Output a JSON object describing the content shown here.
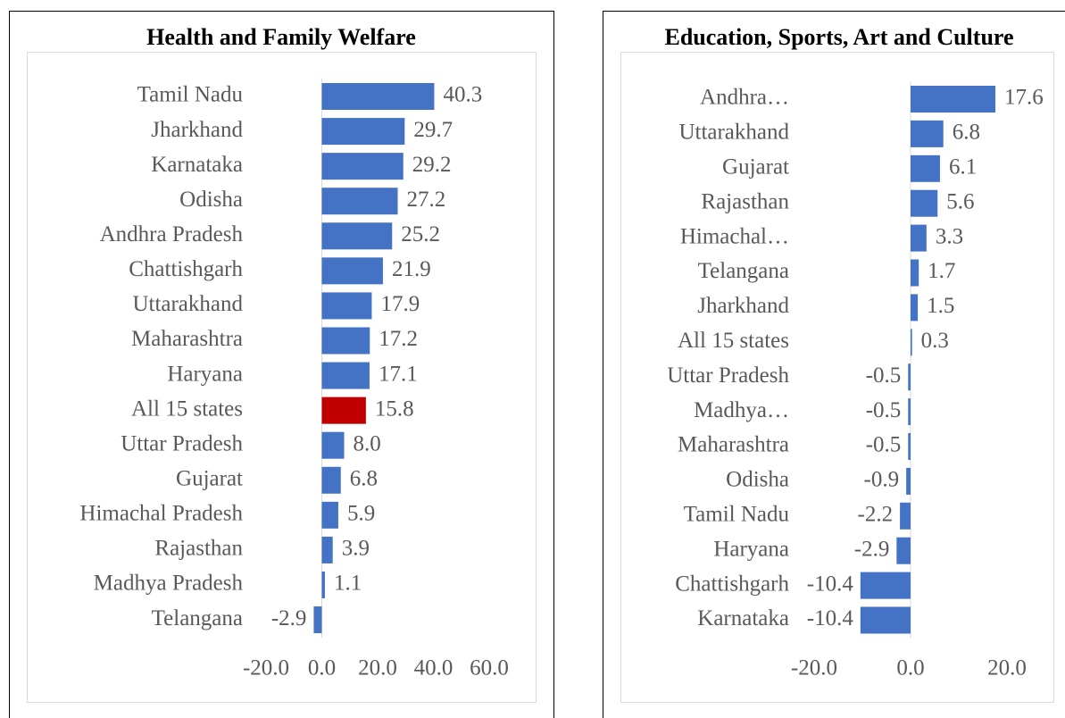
{
  "chart_data": [
    {
      "type": "bar",
      "orientation": "horizontal",
      "title": "Health and Family Welfare",
      "categories": [
        "Tamil Nadu",
        "Jharkhand",
        "Karnataka",
        "Odisha",
        "Andhra Pradesh",
        "Chattishgarh",
        "Uttarakhand",
        "Maharashtra",
        "Haryana",
        "All 15 states",
        "Uttar Pradesh",
        "Gujarat",
        "Himachal Pradesh",
        "Rajasthan",
        "Madhya Pradesh",
        "Telangana"
      ],
      "values": [
        40.3,
        29.7,
        29.2,
        27.2,
        25.2,
        21.9,
        17.9,
        17.2,
        17.1,
        15.8,
        8.0,
        6.8,
        5.9,
        3.9,
        1.1,
        -2.9
      ],
      "value_labels": [
        "40.3",
        "29.7",
        "29.2",
        "27.2",
        "25.2",
        "21.9",
        "17.9",
        "17.2",
        "17.1",
        "15.8",
        "8.0",
        "6.8",
        "5.9",
        "3.9",
        "1.1",
        "-2.9"
      ],
      "colors": [
        "#4472c4",
        "#4472c4",
        "#4472c4",
        "#4472c4",
        "#4472c4",
        "#4472c4",
        "#4472c4",
        "#4472c4",
        "#4472c4",
        "#c00000",
        "#4472c4",
        "#4472c4",
        "#4472c4",
        "#4472c4",
        "#4472c4",
        "#4472c4"
      ],
      "xlim": [
        -20,
        60
      ],
      "xticks": [
        {
          "value": -20,
          "label": "-20.0"
        },
        {
          "value": 0,
          "label": "0.0"
        },
        {
          "value": 20,
          "label": "20.0"
        },
        {
          "value": 40,
          "label": "40.0"
        },
        {
          "value": 60,
          "label": "60.0"
        }
      ]
    },
    {
      "type": "bar",
      "orientation": "horizontal",
      "title": "Education, Sports, Art and Culture",
      "categories": [
        "Andhra…",
        "Uttarakhand",
        "Gujarat",
        "Rajasthan",
        "Himachal…",
        "Telangana",
        "Jharkhand",
        "All 15 states",
        "Uttar Pradesh",
        "Madhya…",
        "Maharashtra",
        "Odisha",
        "Tamil Nadu",
        "Haryana",
        "Chattishgarh",
        "Karnataka"
      ],
      "values": [
        17.6,
        6.8,
        6.1,
        5.6,
        3.3,
        1.7,
        1.5,
        0.3,
        -0.5,
        -0.5,
        -0.5,
        -0.9,
        -2.2,
        -2.9,
        -10.4,
        -10.4
      ],
      "colors": [
        "#4472c4",
        "#4472c4",
        "#4472c4",
        "#4472c4",
        "#4472c4",
        "#4472c4",
        "#4472c4",
        "#4472c4",
        "#4472c4",
        "#4472c4",
        "#4472c4",
        "#4472c4",
        "#4472c4",
        "#4472c4",
        "#4472c4",
        "#4472c4"
      ],
      "xlim": [
        -20,
        20
      ],
      "xticks": [
        {
          "value": -20,
          "label": "-20.0"
        },
        {
          "value": 0,
          "label": "0.0"
        },
        {
          "value": 20,
          "label": "20.0"
        }
      ]
    }
  ]
}
